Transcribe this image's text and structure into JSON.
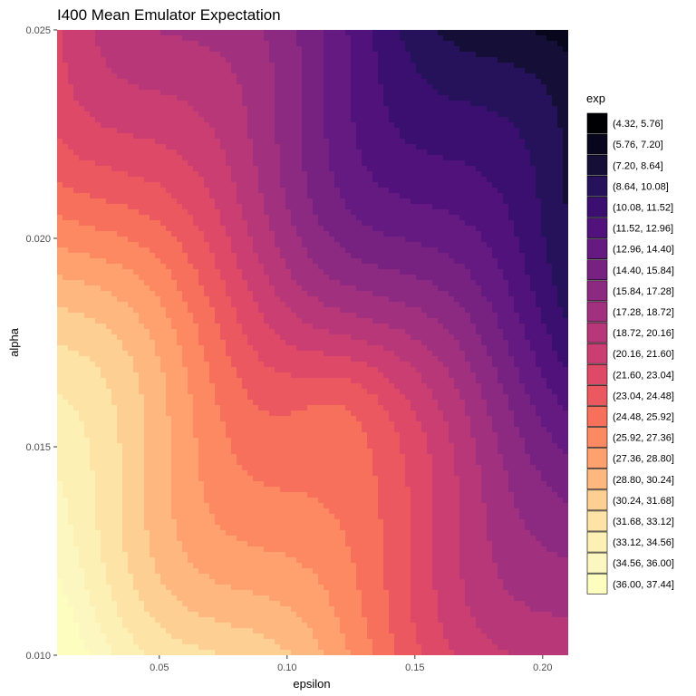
{
  "chart_data": {
    "type": "heatmap",
    "title": "I400 Mean Emulator Expectation",
    "xlabel": "epsilon",
    "ylabel": "alpha",
    "xlim": [
      0.01,
      0.21
    ],
    "ylim": [
      0.01,
      0.025
    ],
    "x_ticks": [
      "0.05",
      "0.10",
      "0.15",
      "0.20"
    ],
    "y_ticks": [
      "0.010",
      "0.015",
      "0.020",
      "0.025"
    ],
    "grid": false,
    "colormap": "magma",
    "legend": {
      "title": "exp",
      "placement": "right",
      "entries": [
        {
          "label": "(4.32, 5.76]",
          "color": "#000004"
        },
        {
          "label": "(5.76, 7.20]",
          "color": "#07061c"
        },
        {
          "label": "(7.20, 8.64]",
          "color": "#150e37"
        },
        {
          "label": "(8.64, 10.08]",
          "color": "#26125a"
        },
        {
          "label": "(10.08, 11.52]",
          "color": "#3b0f70"
        },
        {
          "label": "(11.52, 12.96]",
          "color": "#51127c"
        },
        {
          "label": "(12.96, 14.40]",
          "color": "#641a80"
        },
        {
          "label": "(14.40, 15.84]",
          "color": "#772181"
        },
        {
          "label": "(15.84, 17.28]",
          "color": "#8c2981"
        },
        {
          "label": "(17.28, 18.72]",
          "color": "#a1307e"
        },
        {
          "label": "(18.72, 20.16]",
          "color": "#b73779"
        },
        {
          "label": "(20.16, 21.60]",
          "color": "#ca3e72"
        },
        {
          "label": "(21.60, 23.04]",
          "color": "#de4968"
        },
        {
          "label": "(23.04, 24.48]",
          "color": "#ec5860"
        },
        {
          "label": "(24.48, 25.92]",
          "color": "#f7705c"
        },
        {
          "label": "(25.92, 27.36]",
          "color": "#fc8961"
        },
        {
          "label": "(27.36, 28.80]",
          "color": "#fea16e"
        },
        {
          "label": "(28.80, 30.24]",
          "color": "#feb77e"
        },
        {
          "label": "(30.24, 31.68]",
          "color": "#fecf92"
        },
        {
          "label": "(31.68, 33.12]",
          "color": "#fde4a6"
        },
        {
          "label": "(33.12, 34.56]",
          "color": "#fcf0b5"
        },
        {
          "label": "(34.56, 36.00]",
          "color": "#fcf7c0"
        },
        {
          "label": "(36.00, 37.44]",
          "color": "#fcfdbf"
        }
      ]
    }
  }
}
